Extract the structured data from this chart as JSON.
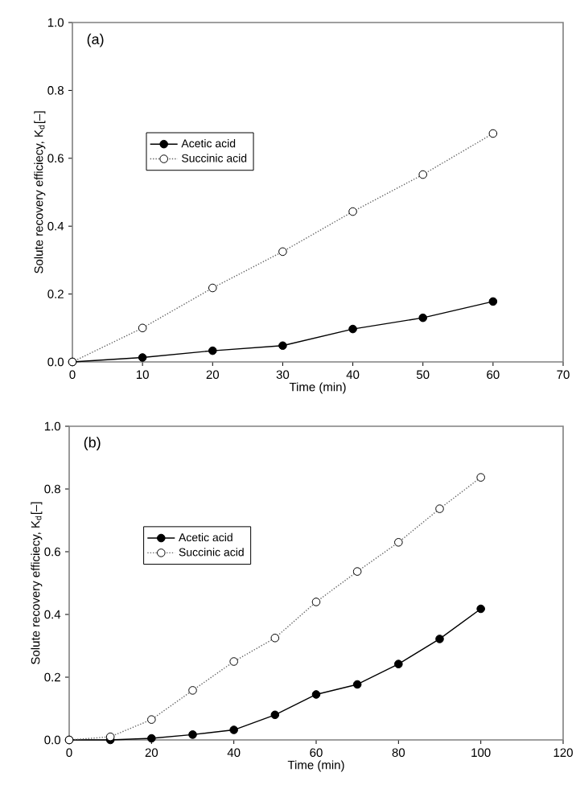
{
  "chart_data": [
    {
      "type": "line",
      "xlabel": "Time (min)",
      "ylabel": "Solute recovery efficiecy, K$_{d}$[–]",
      "annotations": [
        "(a)"
      ],
      "x": [
        0,
        10,
        20,
        30,
        40,
        50,
        60
      ],
      "series": [
        {
          "name": "Acetic acid",
          "color": "#000000",
          "marker": "circle",
          "line_style": "solid",
          "values": [
            0,
            0.013,
            0.033,
            0.048,
            0.097,
            0.13,
            0.178
          ]
        },
        {
          "name": "Succinic acid",
          "color": "#000000",
          "marker": "circle",
          "line_style": "dotted",
          "values": [
            0,
            0.1,
            0.218,
            0.325,
            0.443,
            0.552,
            0.673
          ]
        }
      ],
      "xlim": [
        0,
        70
      ],
      "xticks": [
        0,
        10,
        20,
        30,
        40,
        50,
        60,
        70
      ],
      "ylim": [
        0,
        1
      ],
      "yticks": [
        {
          "value": 0,
          "label": "0.0"
        },
        {
          "value": 0.2,
          "label": "0.2"
        },
        {
          "value": 0.4,
          "label": "0.4"
        },
        {
          "value": 0.6,
          "label": "0.6"
        },
        {
          "value": 0.8,
          "label": "0.8"
        },
        {
          "value": 1,
          "label": "1.0"
        }
      ],
      "legend": "left",
      "grid": false
    },
    {
      "type": "line",
      "xlabel": "Time (min)",
      "ylabel": "Solute recovery efficiecy, K$_{d}$[–]",
      "annotations": [
        "(b)"
      ],
      "x": [
        0,
        10,
        20,
        30,
        40,
        50,
        60,
        70,
        80,
        90,
        100
      ],
      "series": [
        {
          "name": "Acetic acid",
          "color": "#000000",
          "marker": "circle",
          "line_style": "solid",
          "values": [
            0,
            0.0,
            0.005,
            0.017,
            0.032,
            0.08,
            0.145,
            0.177,
            0.242,
            0.322,
            0.418
          ]
        },
        {
          "name": "Succinic acid",
          "color": "#000000",
          "marker": "circle",
          "line_style": "dotted",
          "values": [
            0,
            0.01,
            0.065,
            0.158,
            0.25,
            0.325,
            0.44,
            0.537,
            0.63,
            0.737,
            0.837
          ]
        }
      ],
      "xlim": [
        0,
        120
      ],
      "xticks": [
        0,
        20,
        40,
        60,
        80,
        100,
        120
      ],
      "ylim": [
        0,
        1
      ],
      "yticks": [
        {
          "value": 0,
          "label": "0.0"
        },
        {
          "value": 0.2,
          "label": "0.2"
        },
        {
          "value": 0.4,
          "label": "0.4"
        },
        {
          "value": 0.6,
          "label": "0.6"
        },
        {
          "value": 0.8,
          "label": "0.8"
        },
        {
          "value": 1,
          "label": "1.0"
        }
      ],
      "legend": "left",
      "grid": false
    }
  ]
}
